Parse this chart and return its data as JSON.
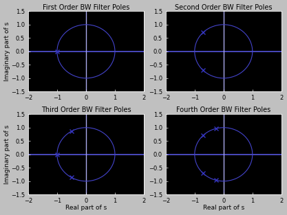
{
  "titles": [
    "First Order BW Filter Poles",
    "Second Order BW Filter Poles",
    "Third Order BW Filter Poles",
    "Fourth Order BW Filter Poles"
  ],
  "poles": [
    [
      [
        -1.0,
        0.0
      ]
    ],
    [
      [
        -0.7071067811865476,
        0.7071067811865476
      ],
      [
        -0.7071067811865476,
        -0.7071067811865476
      ]
    ],
    [
      [
        -0.4999999999999998,
        0.8660254037844387
      ],
      [
        -1.0,
        0.0
      ],
      [
        -0.4999999999999998,
        -0.8660254037844387
      ]
    ],
    [
      [
        -0.2588190451025207,
        0.9659258262890683
      ],
      [
        -0.7071067811865476,
        0.7071067811865476
      ],
      [
        -0.7071067811865476,
        -0.7071067811865476
      ],
      [
        -0.2588190451025207,
        -0.9659258262890683
      ]
    ]
  ],
  "xlim": [
    -2,
    2
  ],
  "ylim": [
    -1.5,
    1.5
  ],
  "xticks": [
    -2,
    -1,
    0,
    1,
    2
  ],
  "yticks": [
    -1.5,
    -1.0,
    -0.5,
    0.0,
    0.5,
    1.0,
    1.5
  ],
  "xlabel": "Real part of s",
  "ylabel": "Imaginary part of s",
  "circle_color": "#4444cc",
  "pole_color": "#3333bb",
  "hline_color": "#5555dd",
  "vline_color": "#aaaaee",
  "bg_color": "#c0c0c0",
  "plot_bg_color": "#000000",
  "tick_color": "#000000",
  "spine_color": "#000000",
  "title_fontsize": 7.0,
  "label_fontsize": 6.5,
  "tick_fontsize": 6.0,
  "marker_size": 4,
  "marker_lw": 1.0,
  "circle_lw": 0.8,
  "hline_lw": 1.2,
  "vline_lw": 1.0
}
